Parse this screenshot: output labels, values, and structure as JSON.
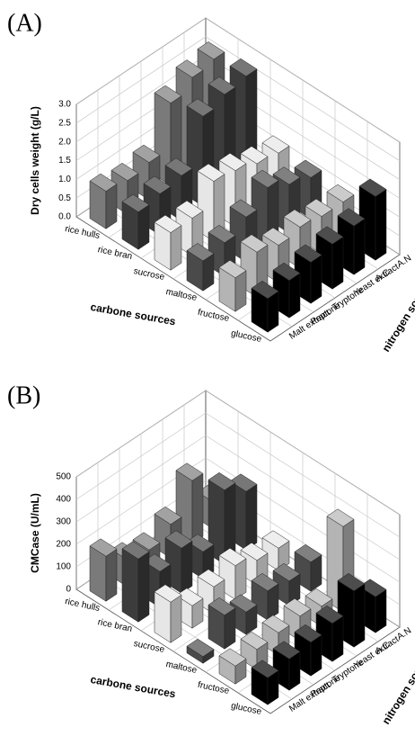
{
  "chart_data": [
    {
      "type": "bar3d",
      "panel_label": "(A)",
      "z_label": "Dry cells weight (g/L)",
      "x_label": "carbone sources",
      "y_label": "nitrogen sources",
      "categories": [
        "rice hulls",
        "rice bran",
        "sucrose",
        "maltose",
        "fructose",
        "glucose"
      ],
      "colors": [
        "#7a7a7a",
        "#3c3c3c",
        "#e6e6e6",
        "#4a4a4a",
        "#b4b4b4",
        "#000000"
      ],
      "series": [
        {
          "name": "Malt extract",
          "values": [
            1.0,
            1.0,
            1.0,
            0.8,
            0.9,
            0.9
          ]
        },
        {
          "name": "Peptone",
          "values": [
            0.9,
            1.1,
            1.0,
            0.9,
            1.2,
            1.0
          ]
        },
        {
          "name": "Tryptone",
          "values": [
            1.0,
            1.2,
            1.6,
            1.2,
            1.0,
            1.1
          ]
        },
        {
          "name": "Yeast extract",
          "values": [
            2.2,
            2.4,
            1.5,
            1.6,
            1.1,
            1.2
          ]
        },
        {
          "name": "A.C",
          "values": [
            2.5,
            2.6,
            1.3,
            1.3,
            1.0,
            1.3
          ]
        },
        {
          "name": "A.N",
          "values": [
            2.6,
            2.7,
            1.2,
            1.1,
            1.0,
            1.7
          ]
        }
      ],
      "zlim": [
        0,
        3
      ],
      "zticks": [
        {
          "value": 0,
          "label": "0.0"
        },
        0.5,
        {
          "value": 1,
          "label": "1.0"
        },
        1.5,
        {
          "value": 2,
          "label": "2.0"
        },
        2.5,
        {
          "value": 3,
          "label": "3.0"
        }
      ]
    },
    {
      "type": "bar3d",
      "panel_label": "(B)",
      "z_label": "CMCase (U/mL)",
      "x_label": "carbone sources",
      "y_label": "nitrogen sources",
      "categories": [
        "rice hulls",
        "rice bran",
        "sucrose",
        "maltose",
        "fructose",
        "glucose"
      ],
      "colors": [
        "#7a7a7a",
        "#3c3c3c",
        "#e6e6e6",
        "#4a4a4a",
        "#b4b4b4",
        "#000000"
      ],
      "series": [
        {
          "name": "Malt extract",
          "values": [
            200,
            280,
            180,
            30,
            80,
            120
          ]
        },
        {
          "name": "Peptone",
          "values": [
            120,
            160,
            100,
            150,
            90,
            140
          ]
        },
        {
          "name": "Tryptone",
          "values": [
            100,
            200,
            120,
            100,
            100,
            150
          ]
        },
        {
          "name": "Yeast extract",
          "values": [
            150,
            120,
            150,
            130,
            110,
            170
          ]
        },
        {
          "name": "A.C",
          "values": [
            280,
            330,
            110,
            110,
            90,
            250
          ]
        },
        {
          "name": "A.N",
          "values": [
            120,
            260,
            100,
            130,
            380,
            160
          ]
        }
      ],
      "zlim": [
        0,
        500
      ],
      "zticks": [
        0,
        100,
        200,
        300,
        400,
        500
      ]
    }
  ]
}
